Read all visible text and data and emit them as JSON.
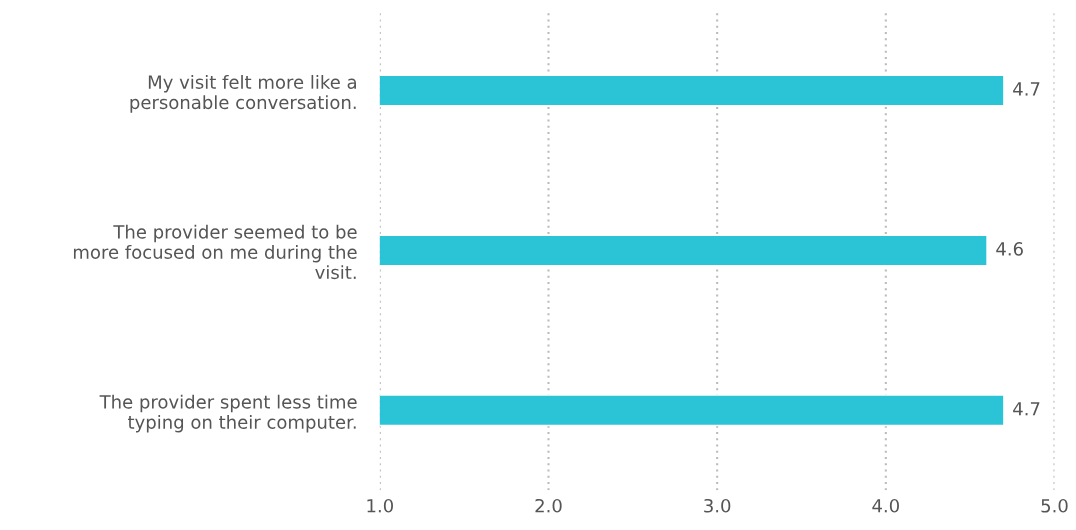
{
  "chart_data": {
    "type": "bar",
    "orientation": "horizontal",
    "categories": [
      "My visit felt more like a\npersonable conversation.",
      "The provider seemed to be\nmore focused on me during the\nvisit.",
      "The provider spent less time\ntyping on their computer."
    ],
    "values": [
      4.7,
      4.6,
      4.7
    ],
    "color": "#2bc4d6",
    "data_labels": true,
    "xlim": [
      1,
      5
    ],
    "xticks": [
      {
        "value": 1,
        "label": "1.0"
      },
      {
        "value": 2,
        "label": "2.0"
      },
      {
        "value": 3,
        "label": "3.0"
      },
      {
        "value": 4,
        "label": "4.0"
      },
      {
        "value": 5,
        "label": "5.0"
      }
    ],
    "grid": "x"
  }
}
